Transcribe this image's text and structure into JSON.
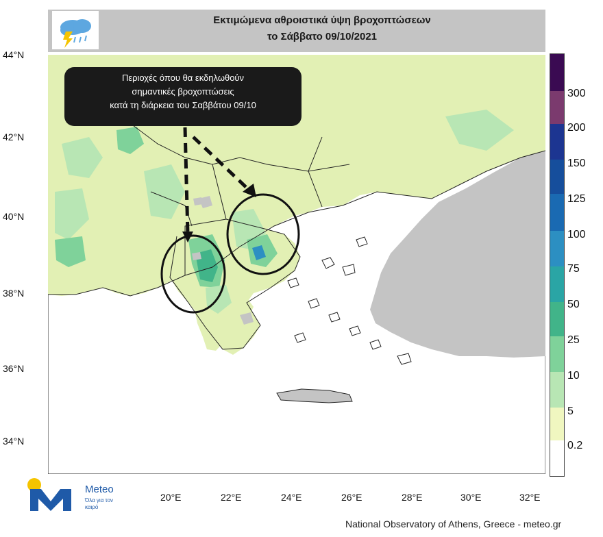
{
  "title": {
    "line1": "Εκτιμώμενα αθροιστικά ύψη βροχοπτώσεων",
    "line2": "το Σάββατο  09/10/2021"
  },
  "icons": {
    "title_icon": "rain-thunder-cloud-icon",
    "logo_icon": "meteo-logo-icon"
  },
  "callout": {
    "line1": "Περιοχές όπου θα εκδηλωθούν",
    "line2": "σημαντικές βροχοπτώσεις",
    "line3": "κατά τη διάρκεια του Σαββάτου 09/10"
  },
  "axes": {
    "lat_labels": [
      "44°N",
      "42°N",
      "40°N",
      "38°N",
      "36°N",
      "34°N"
    ],
    "lon_labels": [
      "20°E",
      "22°E",
      "24°E",
      "26°E",
      "28°E",
      "30°E",
      "32°E"
    ]
  },
  "colorbar": {
    "labels": [
      "300",
      "200",
      "150",
      "125",
      "100",
      "75",
      "50",
      "25",
      "10",
      "5",
      "0.2"
    ],
    "colors": {
      "c0": "#ffffff",
      "c1": "#f0f7c0",
      "c2": "#e2f0b4",
      "c3": "#b8e6b4",
      "c4": "#7fd29a",
      "c5": "#41b489",
      "c6": "#2aa5a5",
      "c7": "#2c8fc2",
      "c8": "#1a6ab2",
      "c9": "#164e9c",
      "c10": "#1c3591",
      "c11": "#7b3a6e",
      "c12": "#3a0a52"
    }
  },
  "colors": {
    "land_gray": "#c4c4c4",
    "sea": "#ffffff",
    "accent": "#1f5aa8",
    "logo_yellow": "#f5c400"
  },
  "logo": {
    "name": "Meteo",
    "tagline": "Όλα για τον καιρό"
  },
  "credit": "National Observatory of Athens, Greece - meteo.gr"
}
